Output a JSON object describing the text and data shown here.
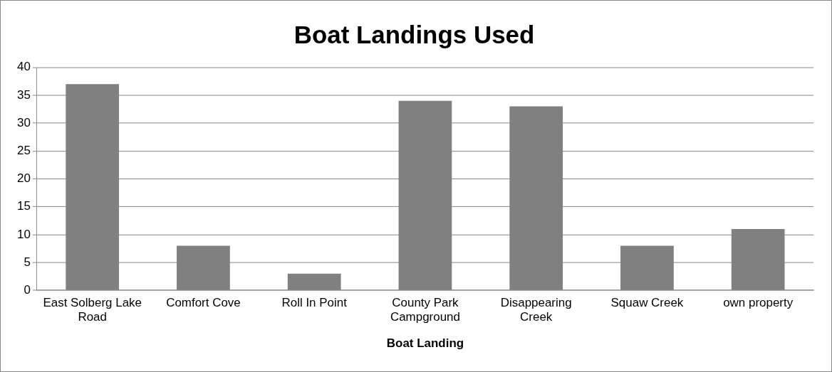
{
  "chart_data": {
    "type": "bar",
    "title": "Boat Landings Used",
    "xlabel": "Boat Landing",
    "categories": [
      "East Solberg Lake Road",
      "Comfort Cove",
      "Roll In Point",
      "County Park Campground",
      "Disappearing Creek",
      "Squaw Creek",
      "own property"
    ],
    "values": [
      37,
      8,
      3,
      34,
      33,
      8,
      11
    ],
    "color": "#808080",
    "ylim": [
      0,
      40
    ],
    "yticks": [
      0,
      5,
      10,
      15,
      20,
      25,
      30,
      35,
      40
    ],
    "grid": "y",
    "legend": false
  }
}
